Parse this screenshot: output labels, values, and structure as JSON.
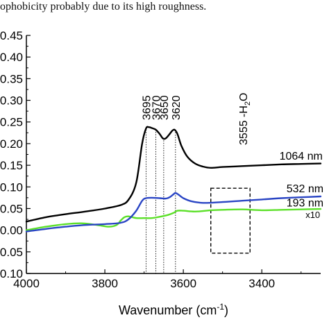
{
  "top_text": "ophobicity probably due to its high roughness.",
  "chart_data": {
    "type": "line",
    "title": "",
    "xlabel": "Wavenumber (cm",
    "xlabel_sup": "-1",
    "xlabel_suffix": ")",
    "ylabel": "",
    "xlim": [
      4000,
      3250
    ],
    "ylim": [
      -0.1,
      0.45
    ],
    "x_reversed": true,
    "xticks": [
      4000,
      3800,
      3600,
      3400
    ],
    "xtick_labels": [
      "4000",
      "3800",
      "3600",
      "3400"
    ],
    "yticks": [
      -0.1,
      -0.05,
      0.0,
      0.05,
      0.1,
      0.15,
      0.2,
      0.25,
      0.3,
      0.35,
      0.4,
      0.45
    ],
    "ytick_labels": [
      "0.10",
      "0.05",
      "0.00",
      "0.05",
      "0.10",
      "0.15",
      "0.20",
      "0.25",
      "0.30",
      "0.35",
      "0.40",
      "0.45"
    ],
    "grid": false,
    "series": [
      {
        "name": "1064 nm",
        "color": "#000000",
        "x": [
          4000,
          3950,
          3900,
          3850,
          3800,
          3760,
          3740,
          3720,
          3705,
          3695,
          3688,
          3680,
          3670,
          3660,
          3652,
          3645,
          3635,
          3628,
          3622,
          3615,
          3605,
          3590,
          3570,
          3550,
          3530,
          3500,
          3450,
          3400,
          3350,
          3300,
          3250
        ],
        "y": [
          0.02,
          0.03,
          0.037,
          0.043,
          0.05,
          0.058,
          0.07,
          0.11,
          0.2,
          0.235,
          0.238,
          0.236,
          0.232,
          0.222,
          0.212,
          0.212,
          0.222,
          0.23,
          0.232,
          0.222,
          0.195,
          0.17,
          0.154,
          0.147,
          0.144,
          0.146,
          0.148,
          0.15,
          0.152,
          0.153,
          0.154
        ]
      },
      {
        "name": "532 nm",
        "color": "#2a45c4",
        "x": [
          4000,
          3950,
          3900,
          3850,
          3800,
          3760,
          3740,
          3720,
          3705,
          3695,
          3680,
          3660,
          3645,
          3635,
          3625,
          3620,
          3612,
          3600,
          3580,
          3550,
          3500,
          3450,
          3400,
          3350,
          3300,
          3250
        ],
        "y": [
          -0.003,
          0.003,
          0.008,
          0.012,
          0.014,
          0.017,
          0.025,
          0.045,
          0.068,
          0.074,
          0.075,
          0.074,
          0.073,
          0.076,
          0.083,
          0.086,
          0.082,
          0.074,
          0.067,
          0.063,
          0.065,
          0.068,
          0.071,
          0.074,
          0.076,
          0.078
        ]
      },
      {
        "name": "193 nm",
        "color": "#5be028",
        "note": "x10",
        "x": [
          4000,
          3950,
          3900,
          3860,
          3820,
          3790,
          3770,
          3760,
          3750,
          3740,
          3720,
          3700,
          3680,
          3660,
          3640,
          3625,
          3615,
          3600,
          3570,
          3530,
          3500,
          3450,
          3400,
          3350,
          3300,
          3250
        ],
        "y": [
          0.0,
          0.008,
          0.014,
          0.016,
          0.012,
          0.008,
          0.012,
          0.022,
          0.03,
          0.032,
          0.028,
          0.028,
          0.028,
          0.031,
          0.035,
          0.04,
          0.045,
          0.045,
          0.043,
          0.046,
          0.047,
          0.048,
          0.046,
          0.047,
          0.048,
          0.049
        ]
      }
    ],
    "annotations": [
      {
        "label": "3695",
        "x": 3695,
        "ytop": 0.238
      },
      {
        "label": "3670",
        "x": 3670,
        "ytop": 0.233
      },
      {
        "label": "3650",
        "x": 3650,
        "ytop": 0.213
      },
      {
        "label": "3620",
        "x": 3620,
        "ytop": 0.232
      }
    ],
    "water_box": {
      "label": "3555 -H",
      "label_sub": "2",
      "label_suffix": "O",
      "x_from": 3530,
      "x_to": 3430,
      "y_from": -0.053,
      "y_to": 0.097
    },
    "series_labels": [
      {
        "text": "1064 nm",
        "x": 3300,
        "y": 0.163
      },
      {
        "text": "532 nm",
        "x": 3290,
        "y": 0.088
      },
      {
        "text": "193 nm",
        "x": 3290,
        "y": 0.055
      },
      {
        "text": "x10",
        "x": 3270,
        "y": 0.028
      }
    ]
  }
}
